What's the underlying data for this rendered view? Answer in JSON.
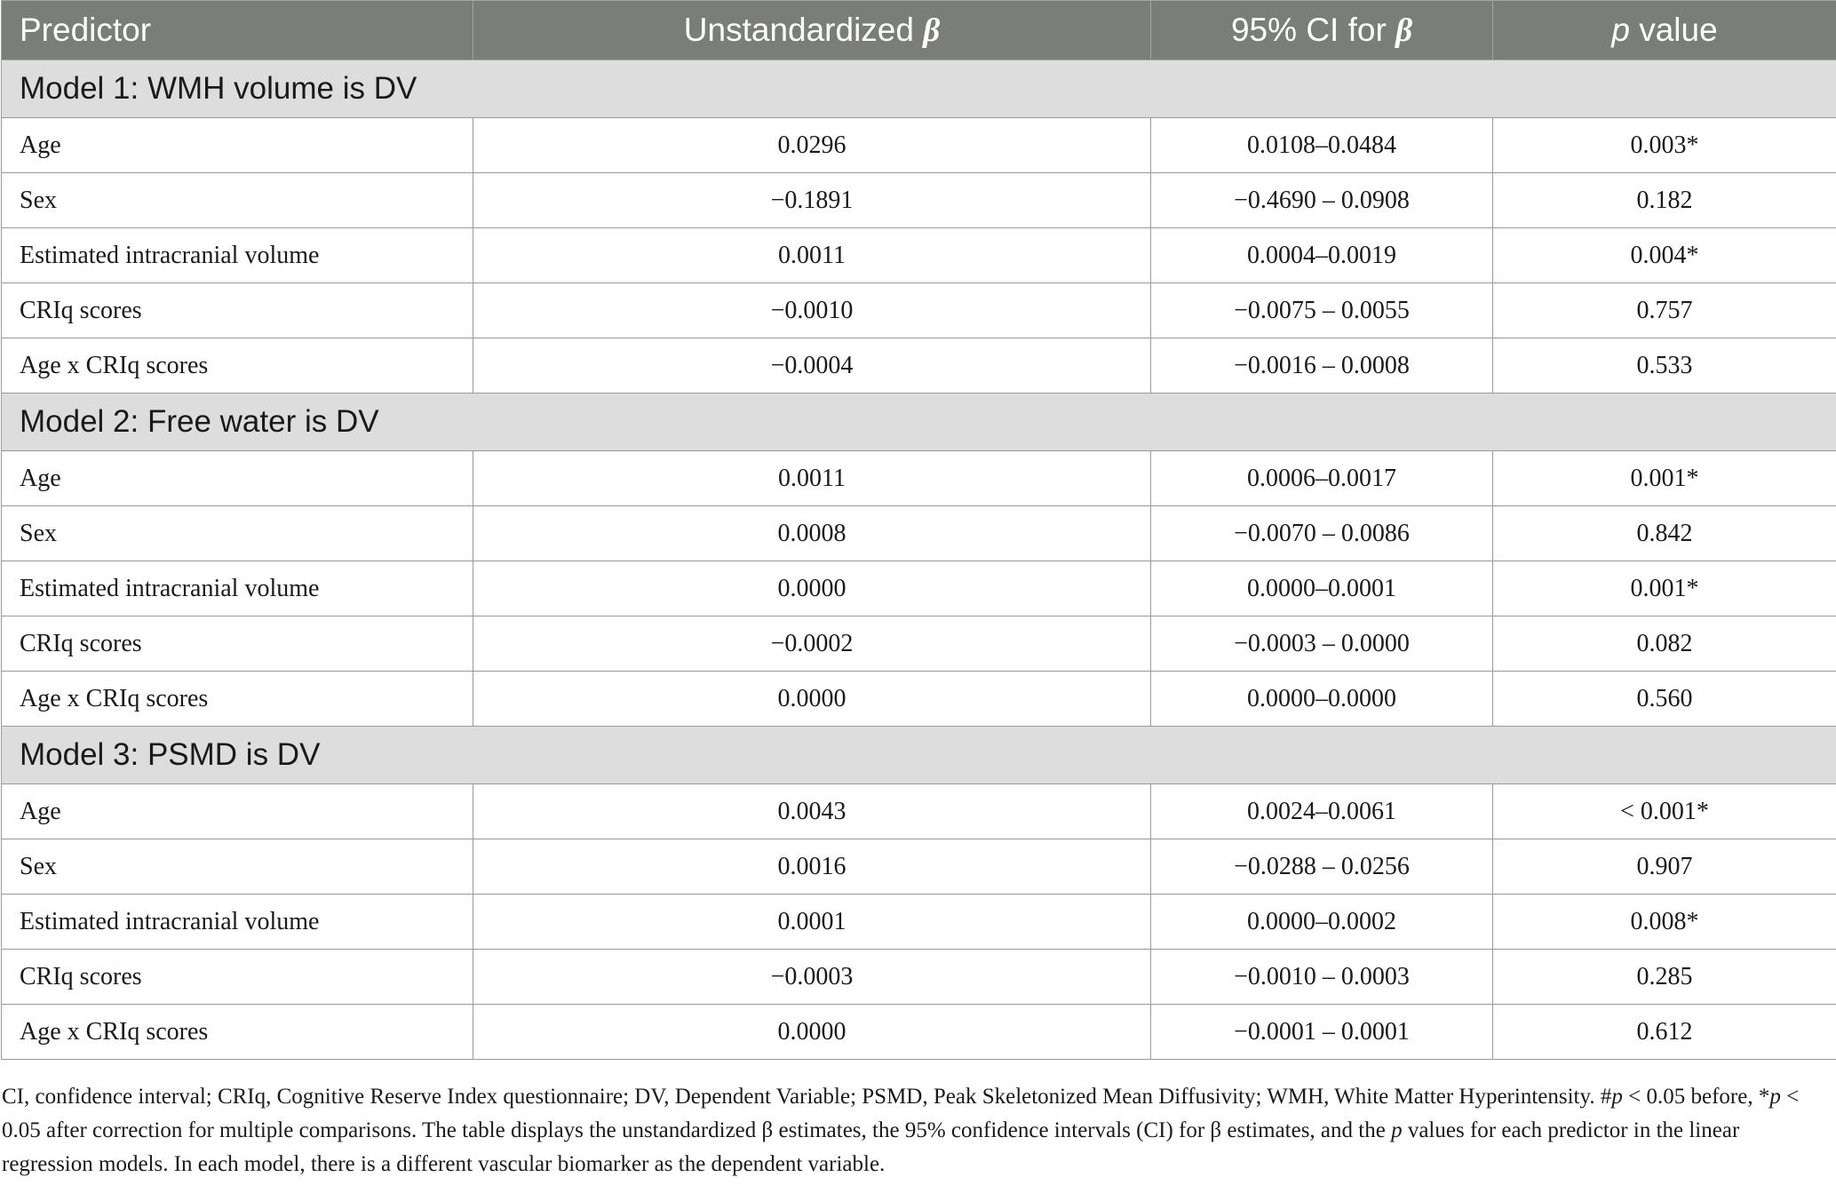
{
  "table": {
    "headers": {
      "predictor": "Predictor",
      "beta_prefix": "Unstandardized ",
      "beta_symbol": "β",
      "ci_prefix": "95% CI for ",
      "ci_symbol": "β",
      "p_symbol": "p",
      "p_suffix": " value"
    },
    "models": [
      {
        "title": "Model 1: WMH volume is DV",
        "rows": [
          {
            "predictor": "Age",
            "beta": "0.0296",
            "ci": "0.0108–0.0484",
            "p": "0.003*"
          },
          {
            "predictor": "Sex",
            "beta": "−0.1891",
            "ci": "−0.4690 – 0.0908",
            "p": "0.182"
          },
          {
            "predictor": "Estimated intracranial volume",
            "beta": "0.0011",
            "ci": "0.0004–0.0019",
            "p": "0.004*"
          },
          {
            "predictor": "CRIq scores",
            "beta": "−0.0010",
            "ci": "−0.0075 – 0.0055",
            "p": "0.757"
          },
          {
            "predictor": "Age x CRIq scores",
            "beta": "−0.0004",
            "ci": "−0.0016 – 0.0008",
            "p": "0.533"
          }
        ]
      },
      {
        "title": "Model 2: Free water is DV",
        "rows": [
          {
            "predictor": "Age",
            "beta": "0.0011",
            "ci": "0.0006–0.0017",
            "p": "0.001*"
          },
          {
            "predictor": "Sex",
            "beta": "0.0008",
            "ci": "−0.0070 – 0.0086",
            "p": "0.842"
          },
          {
            "predictor": "Estimated intracranial volume",
            "beta": "0.0000",
            "ci": "0.0000–0.0001",
            "p": "0.001*"
          },
          {
            "predictor": "CRIq scores",
            "beta": "−0.0002",
            "ci": "−0.0003 – 0.0000",
            "p": "0.082"
          },
          {
            "predictor": "Age x CRIq scores",
            "beta": "0.0000",
            "ci": "0.0000–0.0000",
            "p": "0.560"
          }
        ]
      },
      {
        "title": "Model 3: PSMD is DV",
        "rows": [
          {
            "predictor": "Age",
            "beta": "0.0043",
            "ci": "0.0024–0.0061",
            "p": "< 0.001*"
          },
          {
            "predictor": "Sex",
            "beta": "0.0016",
            "ci": "−0.0288 – 0.0256",
            "p": "0.907"
          },
          {
            "predictor": "Estimated intracranial volume",
            "beta": "0.0001",
            "ci": "0.0000–0.0002",
            "p": "0.008*"
          },
          {
            "predictor": "CRIq scores",
            "beta": "−0.0003",
            "ci": "−0.0010 – 0.0003",
            "p": "0.285"
          },
          {
            "predictor": "Age x CRIq scores",
            "beta": "0.0000",
            "ci": "−0.0001 – 0.0001",
            "p": "0.612"
          }
        ]
      }
    ]
  },
  "footnote": {
    "part1": "CI, confidence interval; CRIq, Cognitive Reserve Index questionnaire; DV, Dependent Variable; PSMD, Peak Skeletonized Mean Diffusivity; WMH, White Matter Hyperintensity. #",
    "p1": "p",
    "part2": " < 0.05 before, *",
    "p2": "p",
    "part3": " < 0.05 after correction for multiple comparisons. The table displays the unstandardized β estimates, the 95% confidence intervals (CI) for β estimates, and the ",
    "p3": "p",
    "part4": " values for each predictor in the linear regression models. In each model, there is a different vascular biomarker as the dependent variable."
  },
  "colors": {
    "header_bg": "#7b7d7b",
    "section_bg": "#dddddd",
    "border": "#9a9a9a"
  }
}
